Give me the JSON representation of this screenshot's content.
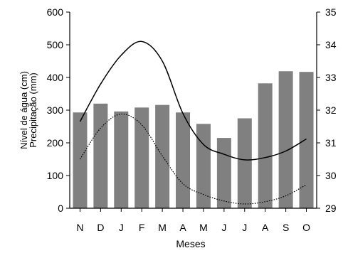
{
  "chart_data": {
    "type": "bar",
    "categories": [
      "N",
      "D",
      "J",
      "F",
      "M",
      "A",
      "M",
      "J",
      "J",
      "A",
      "S",
      "O"
    ],
    "xlabel": "Meses",
    "ylabel_left_line1": "Nível de água (cm)",
    "ylabel_left_line2": "Precipitação (mm)",
    "ylim_left": [
      0,
      600
    ],
    "ylim_right": [
      29,
      35
    ],
    "left_ticks": [
      "0",
      "100",
      "200",
      "300",
      "400",
      "500",
      "600"
    ],
    "right_ticks": [
      "29",
      "30",
      "31",
      "32",
      "33",
      "34",
      "35"
    ],
    "grid": false,
    "colors": {
      "bar": "#808080",
      "axis": "#000000",
      "text": "#000000"
    },
    "series": [
      {
        "kind": "bar",
        "axis": "left",
        "values": [
          293,
          320,
          296,
          308,
          316,
          293,
          258,
          215,
          275,
          382,
          419,
          417
        ]
      },
      {
        "kind": "solid-line",
        "axis": "left",
        "values": [
          265,
          380,
          468,
          510,
          450,
          290,
          195,
          165,
          148,
          155,
          175,
          212
        ]
      },
      {
        "kind": "dotted-line",
        "axis": "left",
        "values": [
          150,
          245,
          288,
          255,
          160,
          75,
          42,
          22,
          13,
          20,
          38,
          72
        ]
      }
    ]
  }
}
